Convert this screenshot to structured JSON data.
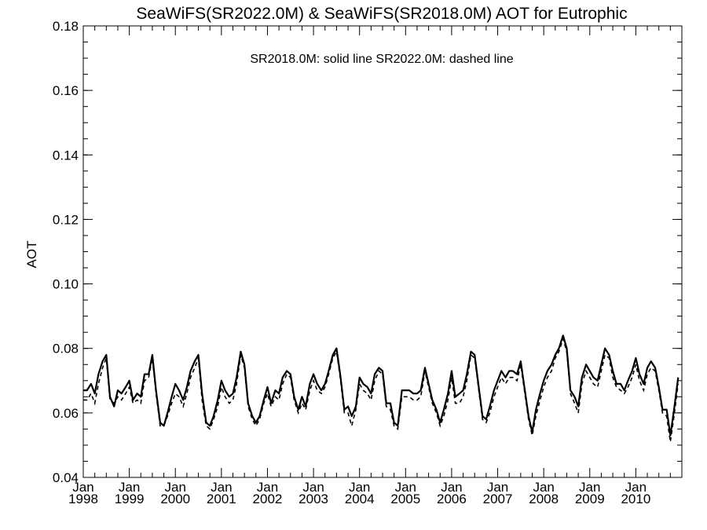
{
  "chart_data": {
    "type": "line",
    "title": "SeaWiFS(SR2022.0M) & SeaWiFS(SR2018.0M)  AOT for Eutrophic",
    "annotation": "SR2018.0M: solid line   SR2022.0M: dashed line",
    "ylabel": "AOT",
    "xlabel": "",
    "ylim": [
      0.04,
      0.18
    ],
    "yticks": [
      "0.04",
      "0.06",
      "0.08",
      "0.10",
      "0.12",
      "0.14",
      "0.16",
      "0.18"
    ],
    "xlim": [
      1998.0,
      2011.0
    ],
    "xticks": [
      {
        "month": "Jan",
        "year": "1998"
      },
      {
        "month": "Jan",
        "year": "1999"
      },
      {
        "month": "Jan",
        "year": "2000"
      },
      {
        "month": "Jan",
        "year": "2001"
      },
      {
        "month": "Jan",
        "year": "2002"
      },
      {
        "month": "Jan",
        "year": "2003"
      },
      {
        "month": "Jan",
        "year": "2004"
      },
      {
        "month": "Jan",
        "year": "2005"
      },
      {
        "month": "Jan",
        "year": "2006"
      },
      {
        "month": "Jan",
        "year": "2007"
      },
      {
        "month": "Jan",
        "year": "2008"
      },
      {
        "month": "Jan",
        "year": "2009"
      },
      {
        "month": "Jan",
        "year": "2010"
      }
    ],
    "grid": false,
    "series": [
      {
        "style": "solid",
        "x": [
          1998.0,
          1998.08,
          1998.17,
          1998.25,
          1998.33,
          1998.42,
          1998.5,
          1998.58,
          1998.67,
          1998.75,
          1998.83,
          1998.92,
          1999.0,
          1999.08,
          1999.17,
          1999.25,
          1999.33,
          1999.42,
          1999.5,
          1999.58,
          1999.67,
          1999.75,
          1999.83,
          1999.92,
          2000.0,
          2000.08,
          2000.17,
          2000.25,
          2000.33,
          2000.42,
          2000.5,
          2000.58,
          2000.67,
          2000.75,
          2000.83,
          2000.92,
          2001.0,
          2001.08,
          2001.17,
          2001.25,
          2001.33,
          2001.42,
          2001.5,
          2001.58,
          2001.67,
          2001.75,
          2001.83,
          2001.92,
          2002.0,
          2002.08,
          2002.17,
          2002.25,
          2002.33,
          2002.42,
          2002.5,
          2002.58,
          2002.67,
          2002.75,
          2002.83,
          2002.92,
          2003.0,
          2003.08,
          2003.17,
          2003.25,
          2003.33,
          2003.42,
          2003.5,
          2003.58,
          2003.67,
          2003.75,
          2003.83,
          2003.92,
          2004.0,
          2004.08,
          2004.17,
          2004.25,
          2004.33,
          2004.42,
          2004.5,
          2004.58,
          2004.67,
          2004.75,
          2004.83,
          2004.92,
          2005.0,
          2005.08,
          2005.17,
          2005.25,
          2005.33,
          2005.42,
          2005.5,
          2005.58,
          2005.67,
          2005.75,
          2005.83,
          2005.92,
          2006.0,
          2006.08,
          2006.17,
          2006.25,
          2006.33,
          2006.42,
          2006.5,
          2006.58,
          2006.67,
          2006.75,
          2006.83,
          2006.92,
          2007.0,
          2007.08,
          2007.17,
          2007.25,
          2007.33,
          2007.42,
          2007.5,
          2007.58,
          2007.67,
          2007.75,
          2007.83,
          2007.92,
          2008.0,
          2008.08,
          2008.17,
          2008.25,
          2008.33,
          2008.42,
          2008.5,
          2008.58,
          2008.67,
          2008.75,
          2008.83,
          2008.92,
          2009.0,
          2009.08,
          2009.17,
          2009.25,
          2009.33,
          2009.42,
          2009.5,
          2009.58,
          2009.67,
          2009.75,
          2009.83,
          2009.92,
          2010.0,
          2010.08,
          2010.17,
          2010.25,
          2010.33,
          2010.42,
          2010.5,
          2010.58,
          2010.67,
          2010.75,
          2010.83,
          2010.92
        ],
        "values": [
          0.067,
          0.067,
          0.069,
          0.066,
          0.072,
          0.076,
          0.078,
          0.065,
          0.062,
          0.067,
          0.066,
          0.068,
          0.07,
          0.064,
          0.066,
          0.065,
          0.072,
          0.072,
          0.078,
          0.067,
          0.057,
          0.056,
          0.06,
          0.065,
          0.069,
          0.067,
          0.064,
          0.068,
          0.073,
          0.076,
          0.078,
          0.066,
          0.057,
          0.056,
          0.059,
          0.064,
          0.07,
          0.067,
          0.065,
          0.066,
          0.071,
          0.079,
          0.075,
          0.063,
          0.059,
          0.057,
          0.059,
          0.064,
          0.068,
          0.063,
          0.067,
          0.066,
          0.071,
          0.073,
          0.072,
          0.065,
          0.061,
          0.065,
          0.062,
          0.069,
          0.072,
          0.069,
          0.067,
          0.069,
          0.073,
          0.078,
          0.08,
          0.072,
          0.061,
          0.062,
          0.059,
          0.062,
          0.071,
          0.069,
          0.068,
          0.066,
          0.072,
          0.074,
          0.073,
          0.063,
          0.063,
          0.057,
          0.056,
          0.067,
          0.067,
          0.067,
          0.066,
          0.066,
          0.067,
          0.074,
          0.069,
          0.064,
          0.061,
          0.057,
          0.061,
          0.066,
          0.073,
          0.065,
          0.066,
          0.067,
          0.072,
          0.079,
          0.078,
          0.069,
          0.059,
          0.058,
          0.062,
          0.067,
          0.07,
          0.073,
          0.071,
          0.073,
          0.073,
          0.072,
          0.076,
          0.068,
          0.059,
          0.054,
          0.061,
          0.066,
          0.07,
          0.073,
          0.075,
          0.078,
          0.08,
          0.084,
          0.08,
          0.067,
          0.065,
          0.062,
          0.071,
          0.075,
          0.073,
          0.071,
          0.07,
          0.075,
          0.08,
          0.078,
          0.073,
          0.069,
          0.069,
          0.067,
          0.07,
          0.073,
          0.077,
          0.072,
          0.069,
          0.074,
          0.076,
          0.074,
          0.068,
          0.061,
          0.061,
          0.053,
          0.061,
          0.071
        ]
      },
      {
        "style": "dashed",
        "x": [
          1998.0,
          1998.08,
          1998.17,
          1998.25,
          1998.33,
          1998.42,
          1998.5,
          1998.58,
          1998.67,
          1998.75,
          1998.83,
          1998.92,
          1999.0,
          1999.08,
          1999.17,
          1999.25,
          1999.33,
          1999.42,
          1999.5,
          1999.58,
          1999.67,
          1999.75,
          1999.83,
          1999.92,
          2000.0,
          2000.08,
          2000.17,
          2000.25,
          2000.33,
          2000.42,
          2000.5,
          2000.58,
          2000.67,
          2000.75,
          2000.83,
          2000.92,
          2001.0,
          2001.08,
          2001.17,
          2001.25,
          2001.33,
          2001.42,
          2001.5,
          2001.58,
          2001.67,
          2001.75,
          2001.83,
          2001.92,
          2002.0,
          2002.08,
          2002.17,
          2002.25,
          2002.33,
          2002.42,
          2002.5,
          2002.58,
          2002.67,
          2002.75,
          2002.83,
          2002.92,
          2003.0,
          2003.08,
          2003.17,
          2003.25,
          2003.33,
          2003.42,
          2003.5,
          2003.58,
          2003.67,
          2003.75,
          2003.83,
          2003.92,
          2004.0,
          2004.08,
          2004.17,
          2004.25,
          2004.33,
          2004.42,
          2004.5,
          2004.58,
          2004.67,
          2004.75,
          2004.83,
          2004.92,
          2005.0,
          2005.08,
          2005.17,
          2005.25,
          2005.33,
          2005.42,
          2005.5,
          2005.58,
          2005.67,
          2005.75,
          2005.83,
          2005.92,
          2006.0,
          2006.08,
          2006.17,
          2006.25,
          2006.33,
          2006.42,
          2006.5,
          2006.58,
          2006.67,
          2006.75,
          2006.83,
          2006.92,
          2007.0,
          2007.08,
          2007.17,
          2007.25,
          2007.33,
          2007.42,
          2007.5,
          2007.58,
          2007.67,
          2007.75,
          2007.83,
          2007.92,
          2008.0,
          2008.08,
          2008.17,
          2008.25,
          2008.33,
          2008.42,
          2008.5,
          2008.58,
          2008.67,
          2008.75,
          2008.83,
          2008.92,
          2009.0,
          2009.08,
          2009.17,
          2009.25,
          2009.33,
          2009.42,
          2009.5,
          2009.58,
          2009.67,
          2009.75,
          2009.83,
          2009.92,
          2010.0,
          2010.08,
          2010.17,
          2010.25,
          2010.33,
          2010.42,
          2010.5,
          2010.58,
          2010.67,
          2010.75,
          2010.83,
          2010.92
        ],
        "values": [
          0.064,
          0.064,
          0.066,
          0.063,
          0.069,
          0.074,
          0.077,
          0.064,
          0.063,
          0.065,
          0.064,
          0.066,
          0.068,
          0.063,
          0.064,
          0.063,
          0.07,
          0.071,
          0.077,
          0.066,
          0.056,
          0.056,
          0.059,
          0.063,
          0.066,
          0.065,
          0.062,
          0.066,
          0.071,
          0.074,
          0.077,
          0.064,
          0.056,
          0.055,
          0.058,
          0.062,
          0.068,
          0.065,
          0.063,
          0.064,
          0.069,
          0.078,
          0.074,
          0.062,
          0.058,
          0.056,
          0.058,
          0.063,
          0.066,
          0.062,
          0.065,
          0.064,
          0.069,
          0.072,
          0.071,
          0.064,
          0.06,
          0.063,
          0.061,
          0.067,
          0.07,
          0.067,
          0.066,
          0.068,
          0.072,
          0.077,
          0.079,
          0.071,
          0.06,
          0.06,
          0.056,
          0.061,
          0.069,
          0.067,
          0.066,
          0.064,
          0.07,
          0.073,
          0.072,
          0.062,
          0.061,
          0.056,
          0.055,
          0.065,
          0.065,
          0.065,
          0.064,
          0.064,
          0.065,
          0.073,
          0.068,
          0.063,
          0.06,
          0.056,
          0.059,
          0.064,
          0.071,
          0.063,
          0.063,
          0.065,
          0.07,
          0.078,
          0.077,
          0.068,
          0.058,
          0.057,
          0.06,
          0.065,
          0.068,
          0.071,
          0.069,
          0.071,
          0.071,
          0.07,
          0.075,
          0.067,
          0.058,
          0.053,
          0.059,
          0.064,
          0.068,
          0.071,
          0.073,
          0.077,
          0.079,
          0.083,
          0.079,
          0.066,
          0.063,
          0.06,
          0.069,
          0.073,
          0.071,
          0.069,
          0.068,
          0.073,
          0.078,
          0.077,
          0.071,
          0.068,
          0.067,
          0.066,
          0.068,
          0.071,
          0.075,
          0.07,
          0.067,
          0.072,
          0.074,
          0.073,
          0.067,
          0.06,
          0.059,
          0.051,
          0.059,
          0.069
        ]
      }
    ]
  }
}
